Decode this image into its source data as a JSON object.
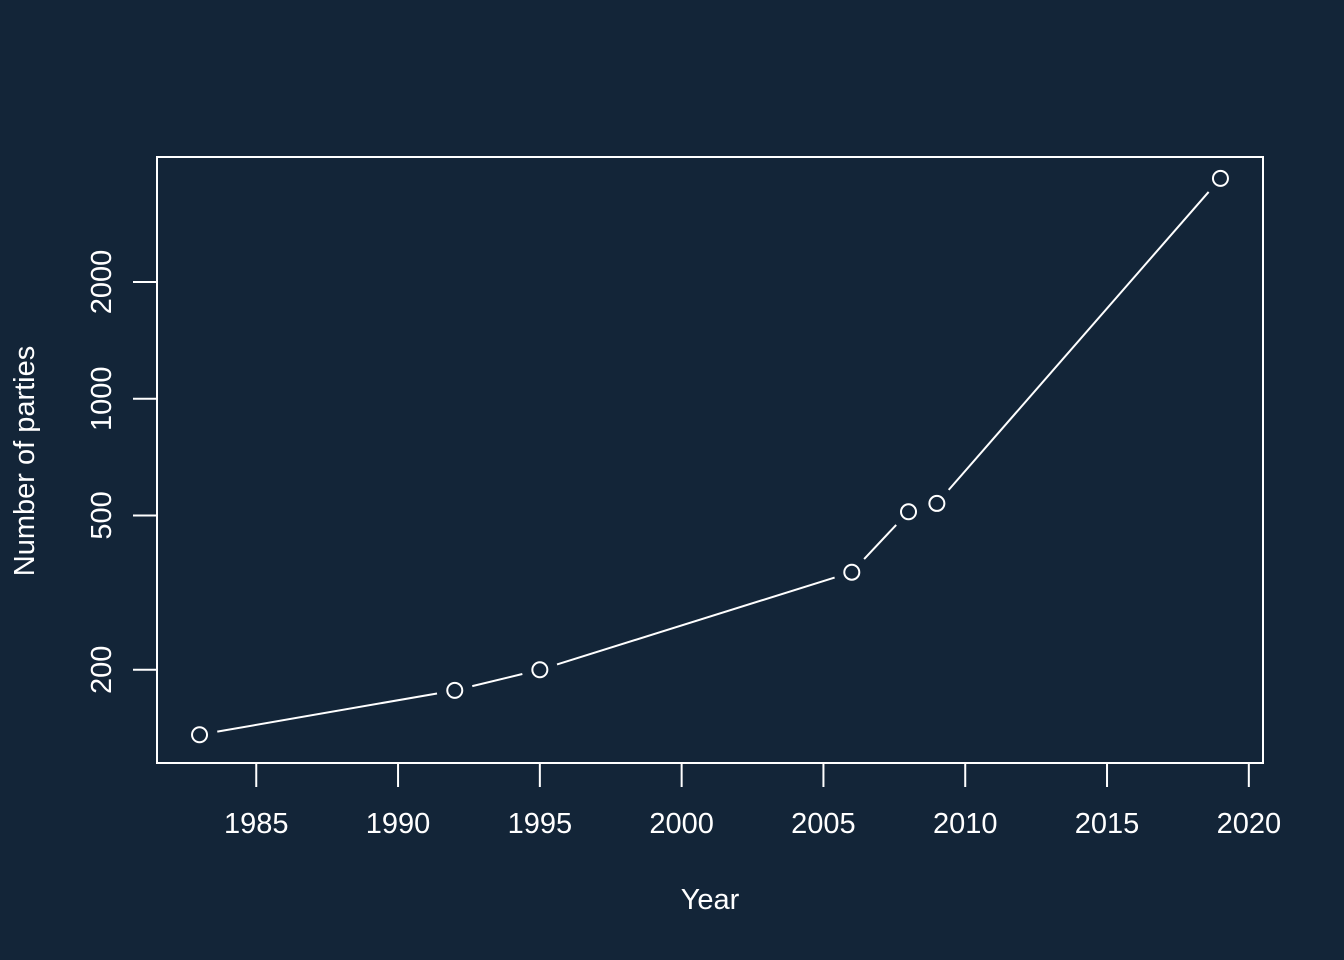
{
  "colors": {
    "background": "#132538",
    "foreground": "#ffffff"
  },
  "chart_data": {
    "type": "line",
    "title": "",
    "xlabel": "Year",
    "ylabel": "Number of parties",
    "x": [
      1983,
      1992,
      1995,
      2006,
      2008,
      2009,
      2019
    ],
    "y": [
      136,
      177,
      200,
      357,
      511,
      537,
      3700
    ],
    "x_ticks": [
      1985,
      1990,
      1995,
      2000,
      2005,
      2010,
      2015,
      2020
    ],
    "y_ticks": [
      200,
      500,
      1000,
      2000
    ],
    "xlim": [
      1981.5,
      2020.5
    ],
    "ylim": [
      115,
      4200
    ],
    "y_scale": "log",
    "marker": "open-circle",
    "grid": false,
    "legend": "none"
  }
}
